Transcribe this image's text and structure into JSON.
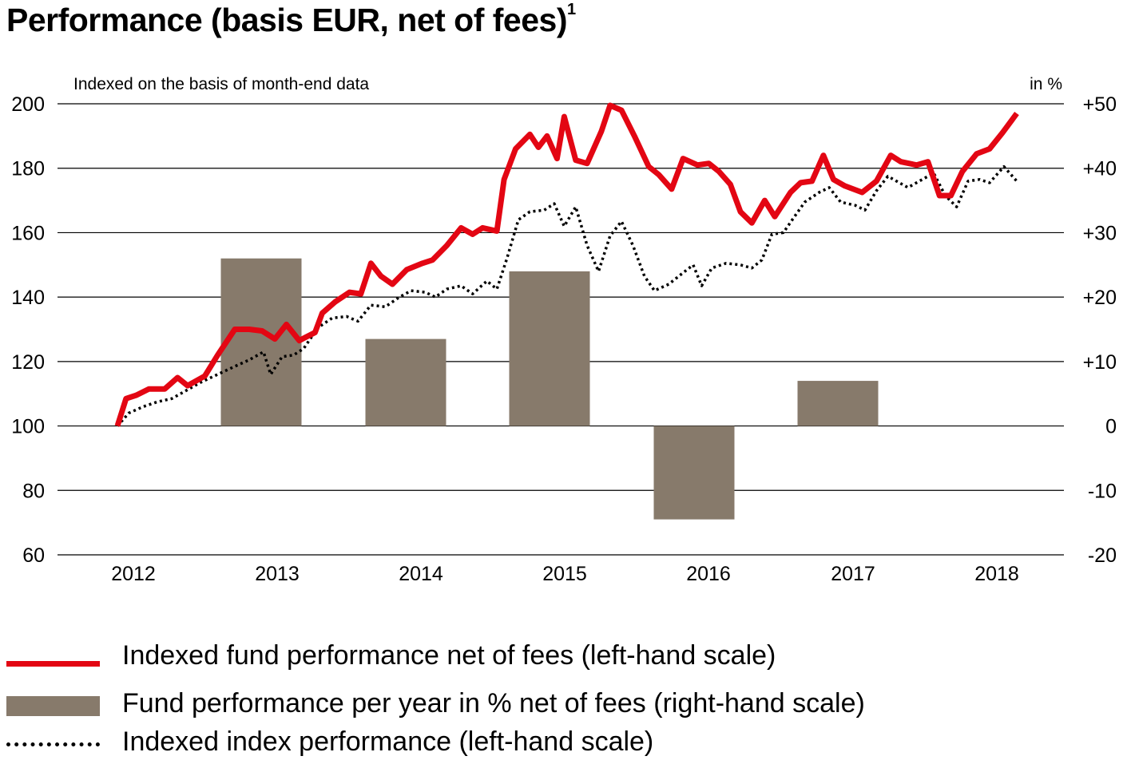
{
  "title": "Performance (basis EUR, net of fees)",
  "title_footnote": "1",
  "subtitle": "Indexed on the basis of month-end data",
  "right_unit": "in %",
  "colors": {
    "fund_line": "#e30613",
    "bars": "#877a6b",
    "index_line": "#000000",
    "grid": "#000000"
  },
  "legend": {
    "fund_line": "Indexed fund performance net of fees (left-hand scale)",
    "bars": "Fund performance per year in % net of fees (right-hand scale)",
    "index_line": "Indexed index performance (left-hand scale)"
  },
  "chart_data": {
    "type": "line",
    "left_axis": {
      "ylim": [
        60,
        200
      ],
      "ticks": [
        60,
        80,
        100,
        120,
        140,
        160,
        180,
        200
      ]
    },
    "right_axis": {
      "ylim": [
        -20,
        50
      ],
      "ticks": [
        "-20",
        "-10",
        "0",
        "+10",
        "+20",
        "+30",
        "+40",
        "+50"
      ]
    },
    "x_axis": {
      "range": [
        2011.9,
        2018.45
      ],
      "ticks": [
        "2012",
        "2013",
        "2014",
        "2015",
        "2016",
        "2017",
        "2018"
      ]
    },
    "grid": true,
    "legend_position": "bottom",
    "series": [
      {
        "name": "Indexed fund performance net of fees (left-hand scale)",
        "style": "line",
        "axis": "left",
        "points": [
          [
            2011.9,
            100
          ],
          [
            2011.96,
            108.5
          ],
          [
            2012.03,
            109.5
          ],
          [
            2012.12,
            111.5
          ],
          [
            2012.23,
            111.5
          ],
          [
            2012.32,
            115
          ],
          [
            2012.39,
            112.5
          ],
          [
            2012.51,
            115.5
          ],
          [
            2012.6,
            122
          ],
          [
            2012.72,
            130
          ],
          [
            2012.82,
            130
          ],
          [
            2012.91,
            129.5
          ],
          [
            2013.0,
            127
          ],
          [
            2013.08,
            131.5
          ],
          [
            2013.17,
            126.5
          ],
          [
            2013.28,
            129
          ],
          [
            2013.33,
            135
          ],
          [
            2013.42,
            138.5
          ],
          [
            2013.52,
            141.5
          ],
          [
            2013.6,
            141
          ],
          [
            2013.67,
            150.5
          ],
          [
            2013.74,
            146.5
          ],
          [
            2013.82,
            144
          ],
          [
            2013.92,
            148.5
          ],
          [
            2014.03,
            150.5
          ],
          [
            2014.1,
            151.5
          ],
          [
            2014.2,
            156
          ],
          [
            2014.3,
            161.5
          ],
          [
            2014.38,
            159.5
          ],
          [
            2014.45,
            161.5
          ],
          [
            2014.55,
            160.5
          ],
          [
            2014.6,
            176.5
          ],
          [
            2014.68,
            186
          ],
          [
            2014.78,
            190.5
          ],
          [
            2014.84,
            186.5
          ],
          [
            2014.9,
            190
          ],
          [
            2014.97,
            183
          ],
          [
            2015.02,
            196
          ],
          [
            2015.1,
            182.5
          ],
          [
            2015.18,
            181.5
          ],
          [
            2015.28,
            191.5
          ],
          [
            2015.34,
            199.5
          ],
          [
            2015.42,
            198
          ],
          [
            2015.51,
            190
          ],
          [
            2015.61,
            180.5
          ],
          [
            2015.68,
            178
          ],
          [
            2015.77,
            173.5
          ],
          [
            2015.85,
            183
          ],
          [
            2015.95,
            181
          ],
          [
            2016.03,
            181.5
          ],
          [
            2016.1,
            179
          ],
          [
            2016.18,
            175
          ],
          [
            2016.25,
            166.5
          ],
          [
            2016.33,
            163
          ],
          [
            2016.42,
            170
          ],
          [
            2016.49,
            165
          ],
          [
            2016.6,
            172.5
          ],
          [
            2016.67,
            175.5
          ],
          [
            2016.75,
            176
          ],
          [
            2016.83,
            184
          ],
          [
            2016.9,
            176.5
          ],
          [
            2016.98,
            174.5
          ],
          [
            2017.1,
            172.5
          ],
          [
            2017.2,
            176
          ],
          [
            2017.3,
            184
          ],
          [
            2017.37,
            182
          ],
          [
            2017.48,
            181
          ],
          [
            2017.56,
            182
          ],
          [
            2017.64,
            171.5
          ],
          [
            2017.72,
            171.5
          ],
          [
            2017.8,
            179
          ],
          [
            2017.9,
            184.5
          ],
          [
            2017.99,
            186
          ],
          [
            2018.08,
            191
          ],
          [
            2018.18,
            197
          ]
        ]
      },
      {
        "name": "Fund performance per year in % net of fees (right-hand scale)",
        "style": "bar",
        "axis": "right",
        "categories": [
          "2013",
          "2014",
          "2015",
          "2016",
          "2017"
        ],
        "values": [
          26,
          13.5,
          24,
          -14.5,
          7
        ]
      },
      {
        "name": "Indexed index performance (left-hand scale)",
        "style": "dotted-line",
        "axis": "left",
        "points": [
          [
            2011.9,
            100
          ],
          [
            2011.98,
            104
          ],
          [
            2012.08,
            106
          ],
          [
            2012.18,
            107.5
          ],
          [
            2012.28,
            108.5
          ],
          [
            2012.38,
            111
          ],
          [
            2012.48,
            113.5
          ],
          [
            2012.6,
            116
          ],
          [
            2012.72,
            118.5
          ],
          [
            2012.82,
            120.5
          ],
          [
            2012.92,
            123
          ],
          [
            2012.97,
            116
          ],
          [
            2013.05,
            121.5
          ],
          [
            2013.13,
            122
          ],
          [
            2013.2,
            124
          ],
          [
            2013.3,
            130.5
          ],
          [
            2013.4,
            133.5
          ],
          [
            2013.5,
            134
          ],
          [
            2013.58,
            132.5
          ],
          [
            2013.67,
            137.5
          ],
          [
            2013.77,
            137
          ],
          [
            2013.87,
            140
          ],
          [
            2013.95,
            142
          ],
          [
            2014.05,
            141.5
          ],
          [
            2014.12,
            140
          ],
          [
            2014.2,
            142.5
          ],
          [
            2014.3,
            143.5
          ],
          [
            2014.38,
            141
          ],
          [
            2014.48,
            145
          ],
          [
            2014.55,
            142.5
          ],
          [
            2014.62,
            152
          ],
          [
            2014.7,
            164
          ],
          [
            2014.78,
            166.5
          ],
          [
            2014.88,
            167
          ],
          [
            2014.95,
            169
          ],
          [
            2015.02,
            162
          ],
          [
            2015.1,
            168
          ],
          [
            2015.18,
            156
          ],
          [
            2015.26,
            148
          ],
          [
            2015.34,
            159
          ],
          [
            2015.42,
            163.5
          ],
          [
            2015.5,
            156
          ],
          [
            2015.58,
            146.5
          ],
          [
            2015.65,
            142
          ],
          [
            2015.75,
            144
          ],
          [
            2015.82,
            146.5
          ],
          [
            2015.92,
            150
          ],
          [
            2015.98,
            143.5
          ],
          [
            2016.05,
            149
          ],
          [
            2016.15,
            150.5
          ],
          [
            2016.25,
            150
          ],
          [
            2016.33,
            149
          ],
          [
            2016.4,
            151.5
          ],
          [
            2016.47,
            159.5
          ],
          [
            2016.55,
            160
          ],
          [
            2016.62,
            164.5
          ],
          [
            2016.7,
            169.5
          ],
          [
            2016.8,
            172.5
          ],
          [
            2016.87,
            174
          ],
          [
            2016.95,
            169.5
          ],
          [
            2017.05,
            168.5
          ],
          [
            2017.12,
            167
          ],
          [
            2017.2,
            173
          ],
          [
            2017.28,
            177.5
          ],
          [
            2017.36,
            175.5
          ],
          [
            2017.42,
            174
          ],
          [
            2017.52,
            176.5
          ],
          [
            2017.6,
            178.5
          ],
          [
            2017.68,
            171.5
          ],
          [
            2017.76,
            168
          ],
          [
            2017.84,
            176
          ],
          [
            2017.92,
            176.5
          ],
          [
            2017.99,
            175.5
          ],
          [
            2018.09,
            180.5
          ],
          [
            2018.18,
            176
          ]
        ]
      }
    ]
  }
}
